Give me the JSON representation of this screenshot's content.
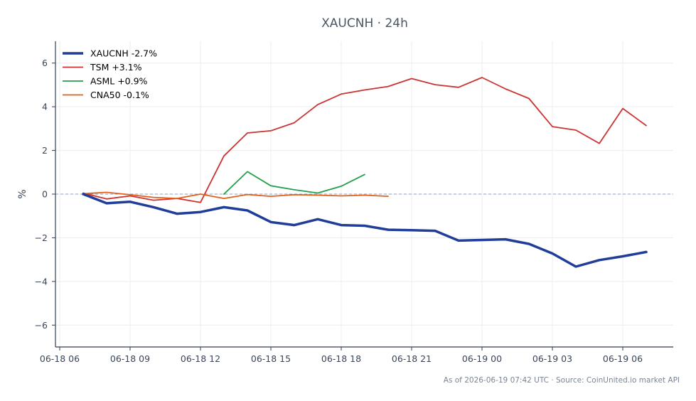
{
  "chart_data": {
    "type": "line",
    "title": "XAUCNH · 24h",
    "xlabel": "",
    "ylabel": "%",
    "ylim": [
      -7,
      7
    ],
    "x_tick_labels": [
      "06-18 06",
      "06-18 09",
      "06-18 12",
      "06-18 15",
      "06-18 18",
      "06-18 21",
      "06-19 00",
      "06-19 03",
      "06-19 06"
    ],
    "y_ticks": [
      -6,
      -4,
      -2,
      0,
      2,
      4,
      6
    ],
    "y_tick_labels": [
      "−6",
      "−4",
      "−2",
      "0",
      "2",
      "4",
      "6"
    ],
    "reference_line": 0,
    "legend_position": "top-left",
    "grid": true,
    "series": [
      {
        "name": "XAUCNH -2.7%",
        "color": "#1f3d99",
        "x": [
          "06-18 07",
          "06-18 08",
          "06-18 09",
          "06-18 10",
          "06-18 11",
          "06-18 12",
          "06-18 13",
          "06-18 14",
          "06-18 15",
          "06-18 16",
          "06-18 17",
          "06-18 18",
          "06-18 19",
          "06-18 20",
          "06-18 21",
          "06-18 22",
          "06-18 23",
          "06-19 00",
          "06-19 01",
          "06-19 02",
          "06-19 03",
          "06-19 04",
          "06-19 05",
          "06-19 06",
          "06-19 07"
        ],
        "values": [
          0.0,
          -0.42,
          -0.35,
          -0.6,
          -0.9,
          -0.82,
          -0.6,
          -0.75,
          -1.28,
          -1.42,
          -1.15,
          -1.42,
          -1.45,
          -1.63,
          -1.65,
          -1.68,
          -2.13,
          -2.1,
          -2.07,
          -2.28,
          -2.72,
          -3.32,
          -3.02,
          -2.85,
          -2.65
        ]
      },
      {
        "name": "TSM +3.1%",
        "color": "#cc3333",
        "x": [
          "06-18 07",
          "06-18 08",
          "06-18 09",
          "06-18 10",
          "06-18 11",
          "06-18 12",
          "06-18 13",
          "06-18 14",
          "06-18 15",
          "06-18 16",
          "06-18 17",
          "06-18 18",
          "06-18 19",
          "06-18 20",
          "06-18 21",
          "06-18 22",
          "06-18 23",
          "06-19 00",
          "06-19 01",
          "06-19 02",
          "06-19 03",
          "06-19 04",
          "06-19 05",
          "06-19 06",
          "06-19 07"
        ],
        "values": [
          0.05,
          -0.22,
          -0.08,
          -0.28,
          -0.2,
          -0.38,
          1.75,
          2.8,
          2.9,
          3.27,
          4.1,
          4.58,
          4.77,
          4.93,
          5.29,
          5.01,
          4.89,
          5.34,
          4.82,
          4.38,
          3.09,
          2.93,
          2.32,
          3.92,
          3.14
        ]
      },
      {
        "name": "ASML +0.9%",
        "color": "#22a04a",
        "x": [
          "06-18 13",
          "06-18 14",
          "06-18 15",
          "06-18 16",
          "06-18 17",
          "06-18 18",
          "06-18 19"
        ],
        "values": [
          0.0,
          1.03,
          0.38,
          0.2,
          0.05,
          0.36,
          0.9
        ]
      },
      {
        "name": "CNA50 -0.1%",
        "color": "#e0601c",
        "x": [
          "06-18 07",
          "06-18 08",
          "06-18 09",
          "06-18 10",
          "06-18 11",
          "06-18 12",
          "06-18 13",
          "06-18 14",
          "06-18 15",
          "06-18 16",
          "06-18 17",
          "06-18 18",
          "06-18 19",
          "06-18 20"
        ],
        "values": [
          0.02,
          0.08,
          -0.03,
          -0.15,
          -0.2,
          0.0,
          -0.2,
          -0.02,
          -0.1,
          -0.03,
          -0.05,
          -0.08,
          -0.05,
          -0.1
        ]
      }
    ]
  },
  "footer": "As of 2026-06-19 07:42 UTC · Source: CoinUnited.io market API"
}
